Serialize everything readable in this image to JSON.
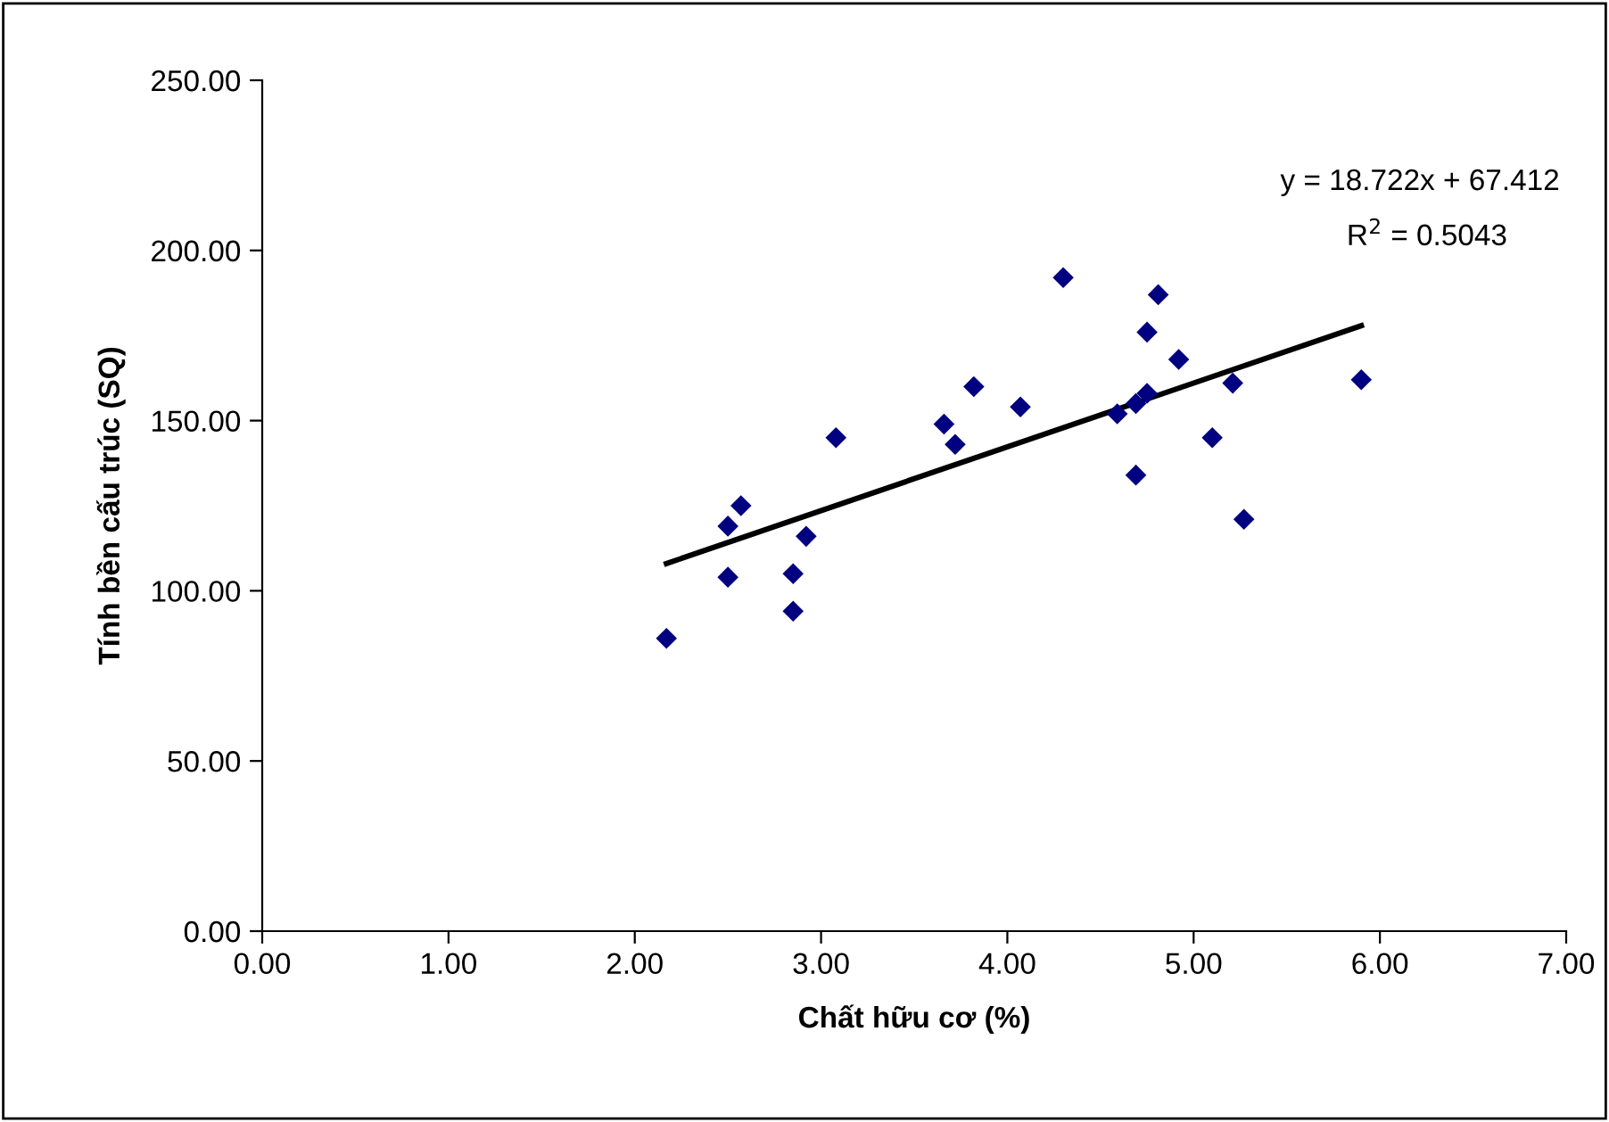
{
  "chart_data": {
    "type": "scatter",
    "xlabel": "Chất hữu cơ (%)",
    "ylabel": "Tính bền cấu trúc (SQ)",
    "xlim": [
      0,
      7
    ],
    "ylim": [
      0,
      250
    ],
    "xticks": [
      {
        "value": 0,
        "label": "0.00"
      },
      {
        "value": 1,
        "label": "1.00"
      },
      {
        "value": 2,
        "label": "2.00"
      },
      {
        "value": 3,
        "label": "3.00"
      },
      {
        "value": 4,
        "label": "4.00"
      },
      {
        "value": 5,
        "label": "5.00"
      },
      {
        "value": 6,
        "label": "6.00"
      },
      {
        "value": 7,
        "label": "7.00"
      }
    ],
    "yticks": [
      {
        "value": 0,
        "label": "0.00"
      },
      {
        "value": 50,
        "label": "50.00"
      },
      {
        "value": 100,
        "label": "100.00"
      },
      {
        "value": 150,
        "label": "150.00"
      },
      {
        "value": 200,
        "label": "200.00"
      },
      {
        "value": 250,
        "label": "250.00"
      }
    ],
    "grid": false,
    "legend": false,
    "series": [
      {
        "marker": "diamond",
        "color": "#000080",
        "x": [
          2.17,
          2.5,
          2.5,
          2.57,
          2.85,
          2.85,
          2.92,
          3.08,
          3.66,
          3.72,
          3.82,
          4.07,
          4.3,
          4.59,
          4.69,
          4.69,
          4.75,
          4.75,
          4.81,
          4.92,
          5.1,
          5.21,
          5.27,
          5.9
        ],
        "values": [
          86,
          104,
          119,
          125,
          105,
          94,
          116,
          145,
          149,
          143,
          160,
          154,
          192,
          152,
          155,
          134,
          158,
          176,
          187,
          168,
          145,
          161,
          121,
          162
        ]
      },
      {
        "type": "line",
        "color": "#000000",
        "x": [
          2.17,
          5.9
        ],
        "values": [
          108.0,
          177.9
        ]
      }
    ],
    "annotations": [
      "y = 18.722x + 67.412",
      "R$^{2}$ = 0.5043"
    ]
  }
}
